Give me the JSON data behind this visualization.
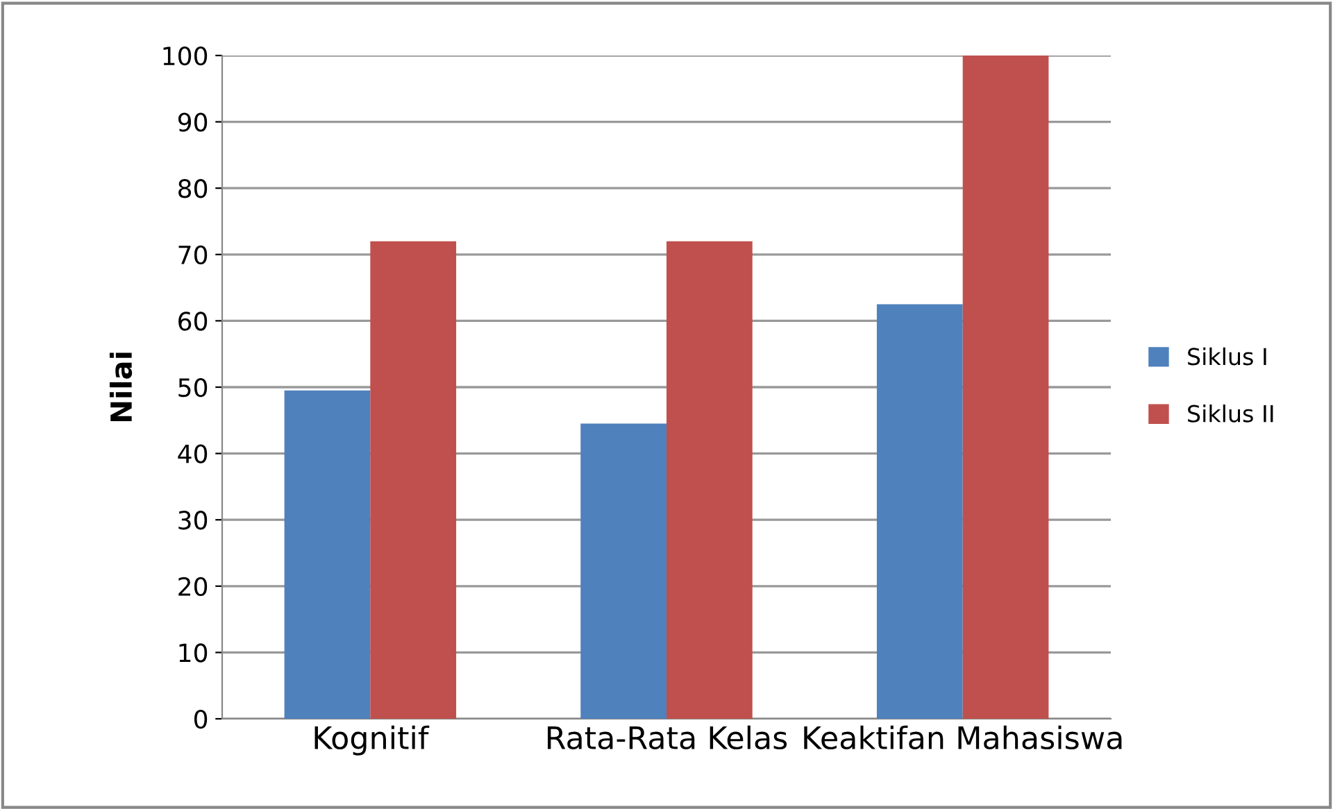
{
  "chart_data": {
    "type": "bar",
    "ylabel": "Nilai",
    "categories": [
      "Kognitif",
      "Rata-Rata Kelas",
      "Keaktifan Mahasiswa"
    ],
    "series": [
      {
        "name": "Siklus I",
        "color": "#4f81bd",
        "values": [
          49.5,
          44.5,
          62.5
        ]
      },
      {
        "name": "Siklus II",
        "color": "#c0504d",
        "values": [
          72,
          72,
          100
        ]
      }
    ],
    "ylim": [
      0,
      100
    ],
    "yticks": [
      0,
      10,
      20,
      30,
      40,
      50,
      60,
      70,
      80,
      90,
      100
    ],
    "grid": "y",
    "legend": "right"
  }
}
